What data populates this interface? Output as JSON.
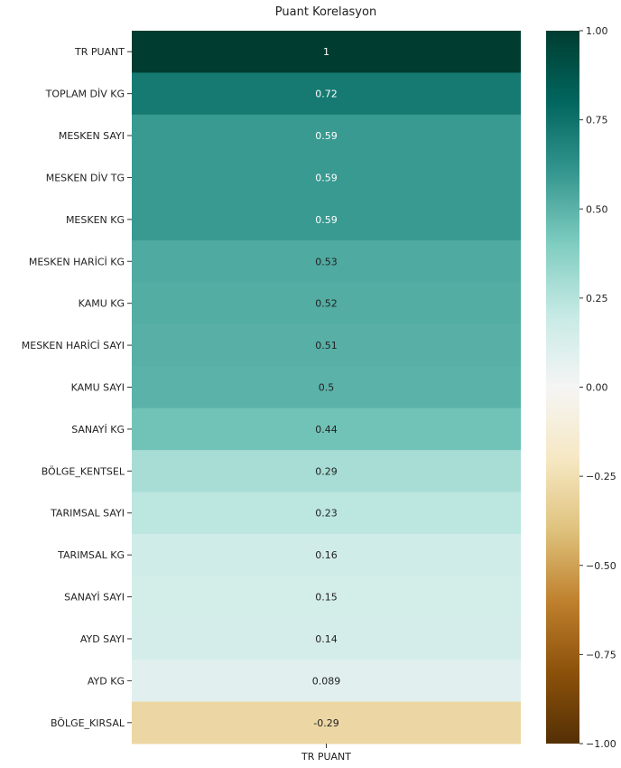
{
  "chart_data": {
    "type": "heatmap",
    "title": "Puant Korelasyon",
    "columns": [
      "TR PUANT"
    ],
    "rows": [
      "TR PUANT",
      "TOPLAM DİV KG",
      "MESKEN SAYI",
      "MESKEN DİV TG",
      "MESKEN KG",
      "MESKEN HARİCİ KG",
      "KAMU KG",
      "MESKEN HARİCİ SAYI",
      "KAMU SAYI",
      "SANAYİ KG",
      "BÖLGE_KENTSEL",
      "TARIMSAL SAYI",
      "TARIMSAL KG",
      "SANAYİ SAYI",
      "AYD SAYI",
      "AYD KG",
      "BÖLGE_KIRSAL"
    ],
    "values": [
      1,
      0.72,
      0.59,
      0.59,
      0.59,
      0.53,
      0.52,
      0.51,
      0.5,
      0.44,
      0.29,
      0.23,
      0.16,
      0.15,
      0.14,
      0.089,
      -0.29
    ],
    "cell_labels": [
      "1",
      "0.72",
      "0.59",
      "0.59",
      "0.59",
      "0.53",
      "0.52",
      "0.51",
      "0.5",
      "0.44",
      "0.29",
      "0.23",
      "0.16",
      "0.15",
      "0.14",
      "0.089",
      "-0.29"
    ],
    "colormap": "BrBG",
    "vmin": -1,
    "vmax": 1,
    "colorbar_ticks": [
      1,
      0.75,
      0.5,
      0.25,
      0,
      -0.25,
      -0.5,
      -0.75,
      -1
    ],
    "colorbar_tick_labels": [
      "1.00",
      "0.75",
      "0.50",
      "0.25",
      "0.00",
      "−0.25",
      "−0.50",
      "−0.75",
      "−1.00"
    ],
    "colors": {
      "stops": [
        "#543005",
        "#8c510a",
        "#bf812d",
        "#dfc27d",
        "#f6e8c3",
        "#f5f5f5",
        "#c7eae5",
        "#80cdc1",
        "#35978f",
        "#01665e",
        "#003c30"
      ],
      "text_dark": "#222222",
      "text_light": "#ffffff"
    }
  }
}
